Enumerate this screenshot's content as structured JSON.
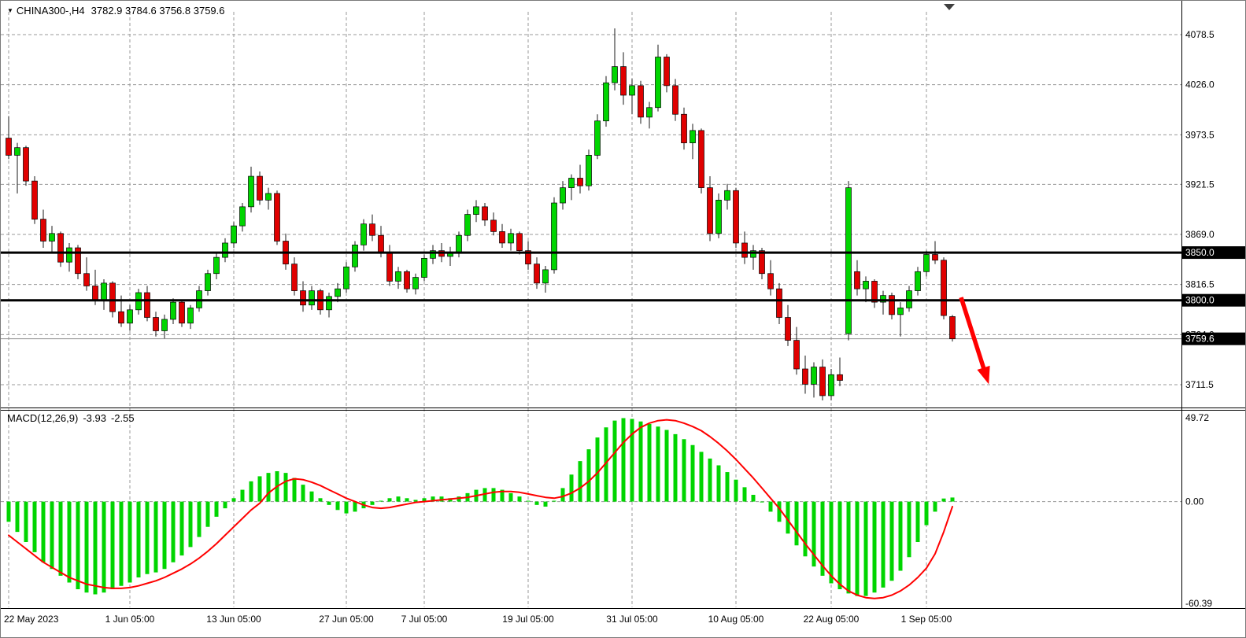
{
  "window": {
    "dropdown_icon": "▼",
    "title": "CHINA300-,H4",
    "ohlc_text": "3782.9 3784.6 3756.8 3759.6"
  },
  "chart_data": {
    "type": "candlestick",
    "symbol": "CHINA300-",
    "timeframe": "H4",
    "title": "CHINA300-,H4",
    "ohlc_display": {
      "open": 3782.9,
      "high": 3784.6,
      "low": 3756.8,
      "close": 3759.6
    },
    "price_axis": {
      "values": [
        4078.5,
        4026.0,
        3973.5,
        3921.5,
        3869.0,
        3816.5,
        3764.0,
        3711.5
      ]
    },
    "hlines": [
      {
        "value": 3850.0,
        "label": "3850.0"
      },
      {
        "value": 3800.0,
        "label": "3800.0"
      }
    ],
    "price_tag": {
      "value": 3759.6,
      "label": "3759.6"
    },
    "time_axis": {
      "ticks": [
        {
          "label": "22 May 2023",
          "index": 0
        },
        {
          "label": "1 Jun 05:00",
          "index": 14
        },
        {
          "label": "13 Jun 05:00",
          "index": 26
        },
        {
          "label": "27 Jun 05:00",
          "index": 39
        },
        {
          "label": "7 Jul 05:00",
          "index": 48
        },
        {
          "label": "19 Jul 05:00",
          "index": 60
        },
        {
          "label": "31 Jul 05:00",
          "index": 72
        },
        {
          "label": "10 Aug 05:00",
          "index": 84
        },
        {
          "label": "22 Aug 05:00",
          "index": 95
        },
        {
          "label": "1 Sep 05:00",
          "index": 106
        }
      ]
    },
    "candles": [
      [
        3970,
        3993,
        3948,
        3952
      ],
      [
        3952,
        3965,
        3912,
        3960
      ],
      [
        3960,
        3962,
        3920,
        3925
      ],
      [
        3925,
        3930,
        3880,
        3885
      ],
      [
        3885,
        3895,
        3855,
        3862
      ],
      [
        3862,
        3878,
        3850,
        3870
      ],
      [
        3870,
        3872,
        3835,
        3840
      ],
      [
        3840,
        3860,
        3830,
        3855
      ],
      [
        3855,
        3858,
        3822,
        3828
      ],
      [
        3828,
        3845,
        3810,
        3815
      ],
      [
        3815,
        3832,
        3795,
        3800
      ],
      [
        3800,
        3822,
        3790,
        3818
      ],
      [
        3818,
        3820,
        3782,
        3788
      ],
      [
        3788,
        3805,
        3772,
        3776
      ],
      [
        3776,
        3795,
        3768,
        3790
      ],
      [
        3790,
        3812,
        3785,
        3808
      ],
      [
        3808,
        3815,
        3778,
        3782
      ],
      [
        3782,
        3788,
        3762,
        3768
      ],
      [
        3768,
        3785,
        3760,
        3780
      ],
      [
        3780,
        3802,
        3775,
        3798
      ],
      [
        3798,
        3800,
        3772,
        3776
      ],
      [
        3776,
        3795,
        3770,
        3792
      ],
      [
        3792,
        3815,
        3788,
        3810
      ],
      [
        3810,
        3832,
        3805,
        3828
      ],
      [
        3828,
        3850,
        3822,
        3845
      ],
      [
        3845,
        3865,
        3840,
        3860
      ],
      [
        3860,
        3882,
        3855,
        3878
      ],
      [
        3878,
        3902,
        3872,
        3898
      ],
      [
        3898,
        3940,
        3892,
        3930
      ],
      [
        3930,
        3935,
        3900,
        3905
      ],
      [
        3905,
        3918,
        3895,
        3912
      ],
      [
        3912,
        3915,
        3858,
        3862
      ],
      [
        3862,
        3870,
        3832,
        3838
      ],
      [
        3838,
        3845,
        3805,
        3810
      ],
      [
        3810,
        3820,
        3788,
        3795
      ],
      [
        3795,
        3815,
        3790,
        3810
      ],
      [
        3810,
        3812,
        3785,
        3790
      ],
      [
        3790,
        3808,
        3782,
        3804
      ],
      [
        3804,
        3818,
        3798,
        3812
      ],
      [
        3812,
        3840,
        3808,
        3835
      ],
      [
        3835,
        3862,
        3830,
        3858
      ],
      [
        3858,
        3885,
        3852,
        3880
      ],
      [
        3880,
        3890,
        3862,
        3868
      ],
      [
        3868,
        3878,
        3845,
        3850
      ],
      [
        3850,
        3858,
        3815,
        3820
      ],
      [
        3820,
        3835,
        3812,
        3830
      ],
      [
        3830,
        3832,
        3808,
        3812
      ],
      [
        3812,
        3828,
        3806,
        3824
      ],
      [
        3824,
        3848,
        3820,
        3844
      ],
      [
        3844,
        3858,
        3838,
        3852
      ],
      [
        3852,
        3860,
        3840,
        3846
      ],
      [
        3846,
        3856,
        3836,
        3850
      ],
      [
        3850,
        3872,
        3845,
        3868
      ],
      [
        3868,
        3895,
        3862,
        3890
      ],
      [
        3890,
        3905,
        3882,
        3898
      ],
      [
        3898,
        3902,
        3878,
        3884
      ],
      [
        3884,
        3892,
        3868,
        3872
      ],
      [
        3872,
        3880,
        3855,
        3860
      ],
      [
        3860,
        3875,
        3852,
        3870
      ],
      [
        3870,
        3872,
        3848,
        3852
      ],
      [
        3852,
        3862,
        3832,
        3838
      ],
      [
        3838,
        3845,
        3812,
        3818
      ],
      [
        3818,
        3836,
        3808,
        3832
      ],
      [
        3832,
        3908,
        3828,
        3902
      ],
      [
        3902,
        3925,
        3895,
        3918
      ],
      [
        3918,
        3932,
        3905,
        3928
      ],
      [
        3928,
        3942,
        3912,
        3920
      ],
      [
        3920,
        3958,
        3915,
        3952
      ],
      [
        3952,
        3995,
        3948,
        3988
      ],
      [
        3988,
        4035,
        3982,
        4028
      ],
      [
        4028,
        4085,
        4020,
        4045
      ],
      [
        4045,
        4060,
        4005,
        4015
      ],
      [
        4015,
        4032,
        3995,
        4025
      ],
      [
        4025,
        4030,
        3985,
        3992
      ],
      [
        3992,
        4008,
        3980,
        4002
      ],
      [
        4002,
        4068,
        3998,
        4055
      ],
      [
        4055,
        4058,
        4018,
        4025
      ],
      [
        4025,
        4032,
        3988,
        3995
      ],
      [
        3995,
        4002,
        3958,
        3965
      ],
      [
        3965,
        3985,
        3948,
        3978
      ],
      [
        3978,
        3980,
        3912,
        3918
      ],
      [
        3918,
        3930,
        3862,
        3870
      ],
      [
        3870,
        3912,
        3865,
        3905
      ],
      [
        3905,
        3922,
        3895,
        3915
      ],
      [
        3915,
        3918,
        3855,
        3860
      ],
      [
        3860,
        3872,
        3838,
        3845
      ],
      [
        3845,
        3858,
        3832,
        3852
      ],
      [
        3852,
        3855,
        3822,
        3828
      ],
      [
        3828,
        3842,
        3805,
        3812
      ],
      [
        3812,
        3818,
        3775,
        3782
      ],
      [
        3782,
        3795,
        3752,
        3758
      ],
      [
        3758,
        3772,
        3722,
        3728
      ],
      [
        3728,
        3742,
        3702,
        3712
      ],
      [
        3712,
        3735,
        3698,
        3730
      ],
      [
        3730,
        3738,
        3695,
        3700
      ],
      [
        3700,
        3728,
        3695,
        3722
      ],
      [
        3722,
        3740,
        3710,
        3716
      ],
      [
        3765,
        3925,
        3758,
        3918
      ],
      [
        3830,
        3842,
        3805,
        3812
      ],
      [
        3812,
        3825,
        3798,
        3820
      ],
      [
        3820,
        3822,
        3792,
        3798
      ],
      [
        3798,
        3810,
        3785,
        3805
      ],
      [
        3805,
        3808,
        3780,
        3785
      ],
      [
        3785,
        3798,
        3762,
        3792
      ],
      [
        3792,
        3815,
        3788,
        3810
      ],
      [
        3810,
        3835,
        3805,
        3830
      ],
      [
        3830,
        3852,
        3825,
        3848
      ],
      [
        3848,
        3862,
        3838,
        3842
      ],
      [
        3842,
        3845,
        3780,
        3784
      ],
      [
        3782.9,
        3784.6,
        3756.8,
        3759.6
      ]
    ],
    "macd": {
      "label": "MACD(12,26,9)",
      "value_main": "-3.93",
      "value_signal": "-2.55",
      "axis_values": [
        49.72,
        0.0,
        -60.39
      ],
      "histogram": [
        -12,
        -18,
        -24,
        -30,
        -36,
        -40,
        -44,
        -48,
        -52,
        -54,
        -55,
        -54,
        -52,
        -50,
        -48,
        -45,
        -43,
        -42,
        -40,
        -36,
        -32,
        -27,
        -21,
        -15,
        -9,
        -4,
        2,
        7,
        12,
        15,
        17,
        18,
        17,
        14,
        10,
        6,
        2,
        -2,
        -5,
        -7,
        -6,
        -4,
        -2,
        0.5,
        2,
        3,
        2,
        1,
        2,
        3,
        3,
        2,
        3,
        5,
        7,
        8,
        8,
        7,
        5,
        3,
        0.5,
        -2,
        -3,
        0.5,
        8,
        16,
        24,
        31,
        38,
        44,
        48,
        49.5,
        49,
        47.5,
        46,
        44.5,
        42.5,
        40,
        37,
        33.5,
        29.5,
        25.5,
        21.5,
        17.5,
        13,
        8.5,
        4,
        -0.5,
        -6,
        -12,
        -19,
        -26,
        -32.5,
        -38.5,
        -44,
        -48.5,
        -52,
        -54.5,
        -56,
        -56,
        -54,
        -51,
        -47,
        -41,
        -33,
        -24,
        -14,
        -6,
        1.8,
        2.4
      ],
      "signal": [
        -20,
        -24,
        -28,
        -32,
        -36,
        -39,
        -42,
        -45,
        -47,
        -49,
        -50,
        -51,
        -51.5,
        -51.5,
        -51,
        -50,
        -48.5,
        -47,
        -45,
        -42.5,
        -40,
        -37,
        -33.5,
        -29.5,
        -25,
        -20,
        -15,
        -10,
        -5,
        -1,
        5,
        9,
        12,
        13.5,
        13,
        11.5,
        9.5,
        7,
        4.5,
        2,
        0,
        -2,
        -3.5,
        -4,
        -3.5,
        -2.5,
        -1.5,
        -0.5,
        0,
        0.5,
        1,
        1.5,
        2,
        2.5,
        3.5,
        4.5,
        5.5,
        6,
        6,
        5.5,
        4.5,
        3.5,
        2.5,
        2,
        3,
        5,
        8,
        12,
        17,
        23,
        29,
        35,
        40,
        44,
        46.5,
        48,
        48.5,
        48,
        46.5,
        44.5,
        42,
        38.5,
        34.5,
        30,
        25,
        19.5,
        14,
        8,
        2,
        -4,
        -11,
        -18,
        -25,
        -31.5,
        -38,
        -44,
        -49,
        -53,
        -55.5,
        -57,
        -57.5,
        -57,
        -55.5,
        -53,
        -49.5,
        -45,
        -39.5,
        -31,
        -18,
        -3
      ]
    },
    "annotations": {
      "arrow": {
        "from_index": 110,
        "from_price": 3803,
        "to_index": 113.2,
        "to_price": 3712,
        "color": "#FF0000"
      }
    },
    "colors": {
      "bull": "#00D500",
      "bear": "#E00000",
      "wick": "#1a1a1a",
      "grid": "#9a9a9a",
      "hline": "#000000",
      "signal": "#FF0000",
      "histogram": "#00D500",
      "tag_bg": "#000000",
      "tag_fg": "#FFFFFF",
      "arrow": "#FF0000"
    }
  }
}
